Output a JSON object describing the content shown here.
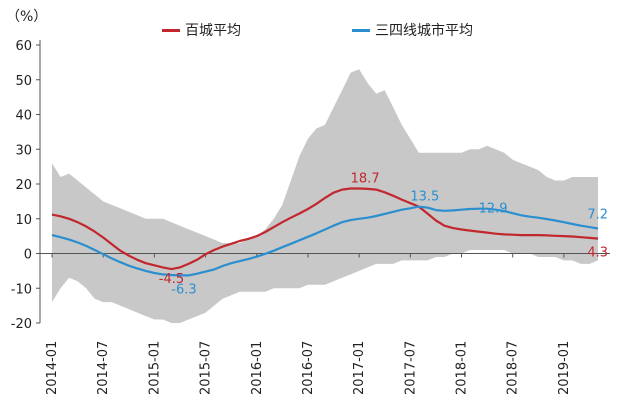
{
  "chart_data": {
    "type": "line",
    "unit_label": "（%）",
    "x": [
      "2014-01",
      "2014-02",
      "2014-03",
      "2014-04",
      "2014-05",
      "2014-06",
      "2014-07",
      "2014-08",
      "2014-09",
      "2014-10",
      "2014-11",
      "2014-12",
      "2015-01",
      "2015-02",
      "2015-03",
      "2015-04",
      "2015-05",
      "2015-06",
      "2015-07",
      "2015-08",
      "2015-09",
      "2015-10",
      "2015-11",
      "2015-12",
      "2016-01",
      "2016-02",
      "2016-03",
      "2016-04",
      "2016-05",
      "2016-06",
      "2016-07",
      "2016-08",
      "2016-09",
      "2016-10",
      "2016-11",
      "2016-12",
      "2017-01",
      "2017-02",
      "2017-03",
      "2017-04",
      "2017-05",
      "2017-06",
      "2017-07",
      "2017-08",
      "2017-09",
      "2017-10",
      "2017-11",
      "2017-12",
      "2018-01",
      "2018-02",
      "2018-03",
      "2018-04",
      "2018-05",
      "2018-06",
      "2018-07",
      "2018-08",
      "2018-09",
      "2018-10",
      "2018-11",
      "2018-12",
      "2019-01",
      "2019-02",
      "2019-03",
      "2019-04",
      "2019-05"
    ],
    "x_tick_labels": [
      "2014-01",
      "2014-07",
      "2015-01",
      "2015-07",
      "2016-01",
      "2016-07",
      "2017-01",
      "2017-07",
      "2018-01",
      "2018-07",
      "2019-01"
    ],
    "ylim": [
      -20,
      60
    ],
    "y_ticks": [
      -20,
      -10,
      0,
      10,
      20,
      30,
      40,
      50,
      60
    ],
    "series": [
      {
        "name": "百城平均",
        "color": "#c1272d",
        "values": [
          11.2,
          10.7,
          10.0,
          9.0,
          7.8,
          6.3,
          4.6,
          2.7,
          0.8,
          -0.6,
          -1.8,
          -2.8,
          -3.4,
          -4.0,
          -4.5,
          -4.0,
          -3.0,
          -1.8,
          -0.2,
          1.0,
          2.0,
          2.8,
          3.6,
          4.2,
          5.0,
          6.2,
          7.6,
          9.0,
          10.3,
          11.5,
          12.8,
          14.3,
          16.0,
          17.5,
          18.4,
          18.7,
          18.7,
          18.6,
          18.4,
          17.6,
          16.6,
          15.5,
          14.5,
          13.5,
          11.5,
          9.5,
          8.0,
          7.3,
          6.9,
          6.6,
          6.3,
          6.0,
          5.7,
          5.5,
          5.4,
          5.3,
          5.3,
          5.3,
          5.2,
          5.1,
          5.0,
          4.9,
          4.7,
          4.5,
          4.3
        ]
      },
      {
        "name": "三四线城市平均",
        "color": "#2b8fcf",
        "values": [
          5.3,
          4.7,
          4.0,
          3.2,
          2.2,
          1.0,
          -0.2,
          -1.4,
          -2.5,
          -3.5,
          -4.3,
          -5.0,
          -5.6,
          -6.0,
          -6.2,
          -6.3,
          -6.3,
          -5.8,
          -5.2,
          -4.6,
          -3.6,
          -2.8,
          -2.2,
          -1.6,
          -0.9,
          -0.1,
          0.8,
          1.8,
          2.8,
          3.8,
          4.8,
          5.8,
          6.9,
          8.0,
          9.0,
          9.6,
          10.0,
          10.3,
          10.8,
          11.4,
          12.0,
          12.6,
          13.0,
          13.5,
          13.2,
          12.5,
          12.3,
          12.4,
          12.6,
          12.8,
          12.9,
          12.9,
          12.6,
          12.2,
          11.6,
          11.0,
          10.6,
          10.3,
          9.9,
          9.5,
          9.0,
          8.5,
          8.0,
          7.6,
          7.2
        ]
      }
    ],
    "band": {
      "color": "#c8c8c8",
      "upper": [
        26,
        22,
        23,
        21,
        19,
        17,
        15,
        14,
        13,
        12,
        11,
        10,
        10,
        10,
        9,
        8,
        7,
        6,
        5,
        4,
        3,
        3,
        3,
        4,
        5,
        7,
        10,
        14,
        21,
        28,
        33,
        36,
        37,
        42,
        47,
        52,
        53,
        49,
        46,
        47,
        42,
        37,
        33,
        29,
        29,
        29,
        29,
        29,
        29,
        30,
        30,
        31,
        30,
        29,
        27,
        26,
        25,
        24,
        22,
        21,
        21,
        22,
        22,
        22,
        22
      ],
      "lower": [
        -14,
        -10,
        -7,
        -8,
        -10,
        -13,
        -14,
        -14,
        -15,
        -16,
        -17,
        -18,
        -19,
        -19,
        -20,
        -20,
        -19,
        -18,
        -17,
        -15,
        -13,
        -12,
        -11,
        -11,
        -11,
        -11,
        -10,
        -10,
        -10,
        -10,
        -9,
        -9,
        -9,
        -8,
        -7,
        -6,
        -5,
        -4,
        -3,
        -3,
        -3,
        -2,
        -2,
        -2,
        -2,
        -1,
        -1,
        0,
        0,
        1,
        1,
        1,
        1,
        1,
        0,
        0,
        0,
        -1,
        -1,
        -1,
        -2,
        -2,
        -3,
        -3,
        -2
      ]
    },
    "annotations": [
      {
        "series": 0,
        "index": 14,
        "text": "-4.5"
      },
      {
        "series": 1,
        "index": 15,
        "text": "-6.3"
      },
      {
        "series": 0,
        "index": 36,
        "text": "18.7"
      },
      {
        "series": 1,
        "index": 43,
        "text": "13.5"
      },
      {
        "series": 1,
        "index": 51,
        "text": "12.9"
      },
      {
        "series": 1,
        "index": 64,
        "text": "7.2"
      },
      {
        "series": 0,
        "index": 64,
        "text": "4.3"
      }
    ],
    "grid": false,
    "legend_position": "top"
  }
}
